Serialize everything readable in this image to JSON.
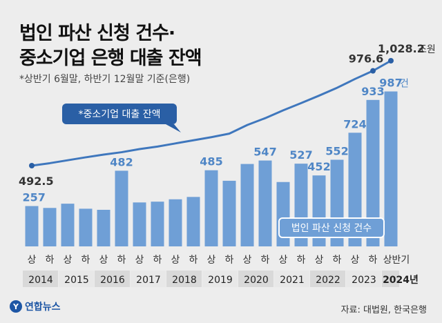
{
  "title_line1": "법인 파산 신청 건수·",
  "title_line2": "중소기업 은행 대출 잔액",
  "subtitle": "*상반기 6월말, 하반기 12월말 기준(은행)",
  "source": "자료: 대법원, 한국은행",
  "logo": "연합뉴스",
  "colors": {
    "bar": "#6f9fd6",
    "line": "#3f77bd",
    "bar_label": "#4f86c6",
    "line_label": "#333333",
    "year_band": "#d9d9d9",
    "year_band_alt": "#e8e8e8",
    "callout": "#2a5fa5"
  },
  "chart_data": [
    {
      "type": "bar",
      "name": "법인 파산 신청 건수",
      "categories": [
        "2014 상",
        "2014 하",
        "2015 상",
        "2015 하",
        "2016 상",
        "2016 하",
        "2017 상",
        "2017 하",
        "2018 상",
        "2018 하",
        "2019 상",
        "2019 하",
        "2020 상",
        "2020 하",
        "2021 상",
        "2021 하",
        "2022 상",
        "2022 하",
        "2023 상",
        "2023 하",
        "2024 상반기"
      ],
      "half_labels": [
        "상",
        "하",
        "상",
        "하",
        "상",
        "하",
        "상",
        "하",
        "상",
        "하",
        "상",
        "하",
        "상",
        "하",
        "상",
        "하",
        "상",
        "하",
        "상",
        "하",
        "상반기"
      ],
      "years": [
        "2014",
        "2015",
        "2016",
        "2017",
        "2018",
        "2019",
        "2020",
        "2021",
        "2022",
        "2023",
        "2024년"
      ],
      "values": [
        257,
        245,
        272,
        240,
        233,
        482,
        280,
        285,
        300,
        315,
        485,
        418,
        525,
        547,
        410,
        527,
        452,
        552,
        724,
        933,
        987
      ],
      "labeled": {
        "0": "257",
        "5": "482",
        "10": "485",
        "13": "547",
        "15": "527",
        "16": "452",
        "17": "552",
        "18": "724",
        "19": "933",
        "20": "987"
      },
      "last_unit": "건",
      "ylim": [
        0,
        1020
      ]
    },
    {
      "type": "line",
      "name": "*중소기업 대출 잔액",
      "categories": [
        "2014 상",
        "2014 하",
        "2015 상",
        "2015 하",
        "2016 상",
        "2016 하",
        "2017 상",
        "2017 하",
        "2018 상",
        "2018 하",
        "2019 상",
        "2019 하",
        "2020 상",
        "2020 하",
        "2021 상",
        "2021 하",
        "2022 상",
        "2022 하",
        "2023 상",
        "2023 하",
        "2024 상반기"
      ],
      "values": [
        492.5,
        505,
        520,
        535,
        549,
        561,
        577,
        590,
        606,
        622,
        638,
        656,
        700,
        735,
        775,
        812,
        850,
        890,
        935,
        976.6,
        1028.2
      ],
      "labeled": {
        "0": "492.5",
        "19": "976.6",
        "20": "1,028.2"
      },
      "last_unit": "조원"
    }
  ],
  "legend_bar_label": "법인 파산 신청 건수",
  "legend_line_label": "*중소기업 대출 잔액"
}
